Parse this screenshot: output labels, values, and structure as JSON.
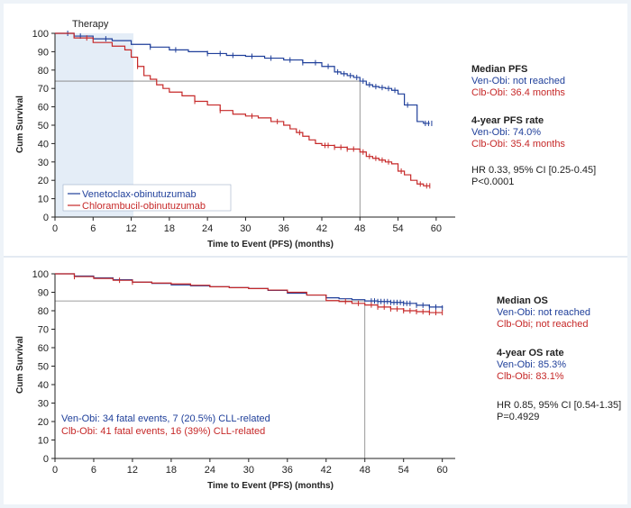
{
  "chart_data": [
    {
      "type": "line",
      "title": "",
      "therapy_label": "Therapy",
      "therapy_span": [
        0,
        12
      ],
      "xlabel": "Time to Event (PFS) (months)",
      "ylabel": "Cum Survival",
      "xlim": [
        0,
        63
      ],
      "ylim": [
        0,
        100
      ],
      "x_ticks": [
        0,
        6,
        12,
        18,
        24,
        30,
        36,
        42,
        48,
        54,
        60
      ],
      "y_ticks": [
        0,
        10,
        20,
        30,
        40,
        50,
        60,
        70,
        80,
        90,
        100
      ],
      "reference": {
        "x": 48,
        "y": 74
      },
      "legend": [
        "Venetoclax-obinutuzumab",
        "Chlorambucil-obinutuzumab"
      ],
      "series": [
        {
          "name": "Venetoclax-obinutuzumab",
          "color": "#1f3f9a",
          "x": [
            0,
            3,
            6,
            9,
            12,
            15,
            18,
            21,
            24,
            27,
            30,
            33,
            36,
            39,
            42,
            44,
            45,
            46,
            47,
            48,
            49,
            50,
            51,
            52,
            53,
            54,
            55,
            56,
            57,
            58,
            59
          ],
          "y": [
            100,
            98.5,
            97,
            96,
            94,
            92.5,
            91,
            90,
            89,
            88,
            87.5,
            86.5,
            85.5,
            84,
            82,
            79,
            78,
            77,
            76,
            74,
            72,
            71,
            70.5,
            70,
            69,
            67,
            61,
            61,
            52,
            51,
            51
          ]
        },
        {
          "name": "Chlorambucil-obinutuzumab",
          "color": "#c62828",
          "x": [
            0,
            3,
            6,
            9,
            11,
            12,
            13,
            14,
            15,
            16,
            17,
            18,
            20,
            22,
            24,
            26,
            28,
            30,
            32,
            34,
            36,
            37,
            38,
            39,
            40,
            41,
            42,
            44,
            46,
            48,
            49,
            50,
            51,
            52,
            53,
            54,
            55,
            56,
            57,
            58,
            59
          ],
          "y": [
            100,
            97.5,
            95,
            93,
            91,
            87,
            82,
            77,
            75,
            72,
            70,
            68,
            66,
            63,
            61,
            58,
            56,
            55,
            54,
            52,
            50,
            48,
            46,
            44,
            42,
            40,
            39,
            38,
            37,
            35.4,
            33,
            32,
            31,
            30,
            29,
            25,
            23,
            20,
            18,
            17,
            17
          ]
        }
      ],
      "markers_x": {
        "Venetoclax-obinutuzumab": [
          2,
          4,
          8,
          15,
          19,
          24,
          26,
          28,
          31,
          34,
          37,
          39,
          41,
          43,
          44.5,
          45.5,
          46.5,
          47.5,
          48.5,
          49.5,
          50.5,
          51.5,
          52.5,
          53.5,
          55.5,
          58.3,
          58.8,
          59.3
        ],
        "Chlorambucil-obinutuzumab": [
          5,
          13,
          22,
          26,
          31,
          35,
          38.5,
          42.5,
          43,
          44,
          45,
          46,
          47,
          48.5,
          49.5,
          50.5,
          51.5,
          52.5,
          54.5,
          57.5,
          58.5,
          59
        ]
      },
      "annotations": {
        "median_title": "Median PFS",
        "median_ven": "Ven-Obi: not reached",
        "median_clb": "Clb-Obi: 36.4 months",
        "rate_title": "4-year PFS rate",
        "rate_ven": "Ven-Obi: 74.0%",
        "rate_clb": "Clb-Obi: 35.4 months",
        "hr": "HR 0.33, 95% CI [0.25-0.45]",
        "p": "P<0.0001"
      }
    },
    {
      "type": "line",
      "title": "",
      "xlabel": "Time to Event (PFS) (months)",
      "ylabel": "Cum Survival",
      "xlim": [
        0,
        62
      ],
      "ylim": [
        0,
        100
      ],
      "x_ticks": [
        0,
        6,
        12,
        18,
        24,
        30,
        36,
        42,
        48,
        54,
        60
      ],
      "y_ticks": [
        0,
        10,
        20,
        30,
        40,
        50,
        60,
        70,
        80,
        90,
        100
      ],
      "reference": {
        "x": 48,
        "y": 85.3
      },
      "series": [
        {
          "name": "Ven-Obi",
          "color": "#1f3f9a",
          "x": [
            0,
            3,
            6,
            9,
            12,
            15,
            18,
            21,
            24,
            27,
            30,
            33,
            36,
            39,
            42,
            44,
            46,
            48,
            50,
            52,
            54,
            56,
            58,
            60
          ],
          "y": [
            100,
            98.8,
            97.8,
            96.8,
            95.5,
            94.8,
            94,
            93.5,
            93,
            92.5,
            92,
            91,
            89.5,
            88.5,
            87,
            86.5,
            86,
            85.3,
            85,
            84.5,
            84,
            83,
            82,
            81.5
          ]
        },
        {
          "name": "Clb-Obi",
          "color": "#c62828",
          "x": [
            0,
            3,
            6,
            9,
            12,
            15,
            18,
            21,
            24,
            27,
            30,
            33,
            36,
            39,
            42,
            44,
            46,
            48,
            50,
            52,
            54,
            56,
            58,
            60
          ],
          "y": [
            100,
            98.5,
            97.5,
            96.5,
            95.5,
            95,
            94.5,
            93.8,
            93,
            92.5,
            92,
            91.2,
            90,
            88.5,
            85.5,
            85,
            84,
            83.1,
            82,
            81,
            80,
            79.5,
            79,
            79
          ]
        }
      ],
      "markers_x": {
        "Ven-Obi": [
          49,
          49.5,
          50,
          50.5,
          51,
          51.5,
          52,
          52.5,
          53,
          53.5,
          54,
          54.5,
          55,
          56,
          57,
          58,
          59,
          60
        ],
        "Clb-Obi": [
          3,
          10,
          12,
          45,
          47,
          49,
          50,
          51,
          52,
          53,
          54,
          55,
          56,
          57,
          58,
          59,
          60
        ]
      },
      "annotations": {
        "median_title": "Median OS",
        "median_ven": "Ven-Obi: not reached",
        "median_clb": "Clb-Obi; not reached",
        "rate_title": "4-year OS rate",
        "rate_ven": "Ven-Obi: 85.3%",
        "rate_clb": "Clb-Obi: 83.1%",
        "hr": "HR 0.85, 95% CI [0.54-1.35]",
        "p": "P=0.4929",
        "events_ven": "Ven-Obi: 34 fatal events, 7 (20.5%) CLL-related",
        "events_clb": "Clb-Obi: 41 fatal events, 16 (39%) CLL-related"
      }
    }
  ]
}
